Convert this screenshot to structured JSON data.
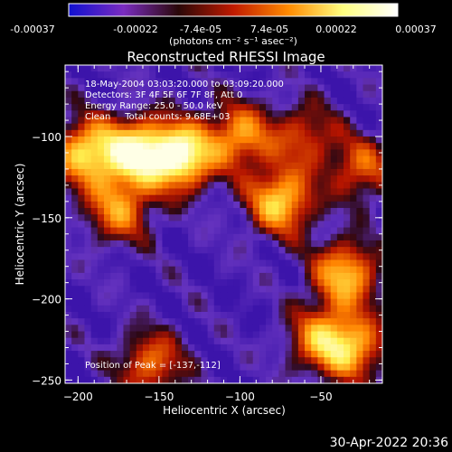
{
  "footer_date": "30-Apr-2022 20:36",
  "colorbar": {
    "ticks": [
      "-0.00037",
      "-0.00022",
      "-7.4e-05",
      "7.4e-05",
      "0.00022",
      "0.00037"
    ],
    "unit_label": "(photons cm⁻² s⁻¹ asec⁻²)",
    "range": [
      -0.00037,
      0.00037
    ],
    "colors": [
      "#1010d0",
      "#7a2cc0",
      "#2a0808",
      "#c01a00",
      "#ff8a00",
      "#ffff80",
      "#ffffff"
    ]
  },
  "chart_data": {
    "type": "heatmap",
    "title": "Reconstructed RHESSI Image",
    "xlabel": "Heliocentric X (arcsec)",
    "ylabel": "Heliocentric Y (arcsec)",
    "xlim": [
      -208,
      -12
    ],
    "ylim": [
      -252,
      -56
    ],
    "x_ticks": [
      -200,
      -150,
      -100,
      -50
    ],
    "y_ticks": [
      -250,
      -200,
      -150,
      -100
    ],
    "x_tick_labels": [
      "−200",
      "−150",
      "−100",
      "−50"
    ],
    "y_tick_labels": [
      "−250",
      "−200",
      "−150",
      "−100"
    ],
    "annotations": [
      "18-May-2004 03:03:20.000 to 03:09:20.000",
      "Detectors: 3F 4F 5F 6F 7F 8F, Att 0",
      "Energy Range: 25.0 - 50.0 keV",
      "Clean     Total counts: 9.68E+03"
    ],
    "peak_label": "Position of Peak = [-137,-112]",
    "peak_position": [
      -137,
      -112
    ],
    "bright_sources": [
      {
        "x": -137,
        "y": -112,
        "intensity": 1.0
      },
      {
        "x": -165,
        "y": -110,
        "intensity": 0.85
      },
      {
        "x": -195,
        "y": -110,
        "intensity": 0.75
      },
      {
        "x": -100,
        "y": -100,
        "intensity": 0.6
      },
      {
        "x": -75,
        "y": -140,
        "intensity": 0.75
      },
      {
        "x": -60,
        "y": -100,
        "intensity": 0.4
      },
      {
        "x": -175,
        "y": -145,
        "intensity": 0.55
      },
      {
        "x": -35,
        "y": -185,
        "intensity": 0.7
      },
      {
        "x": -50,
        "y": -225,
        "intensity": 0.55
      },
      {
        "x": -30,
        "y": -230,
        "intensity": 0.6
      },
      {
        "x": -155,
        "y": -240,
        "intensity": 0.5
      },
      {
        "x": -25,
        "y": -120,
        "intensity": 0.45
      }
    ]
  }
}
